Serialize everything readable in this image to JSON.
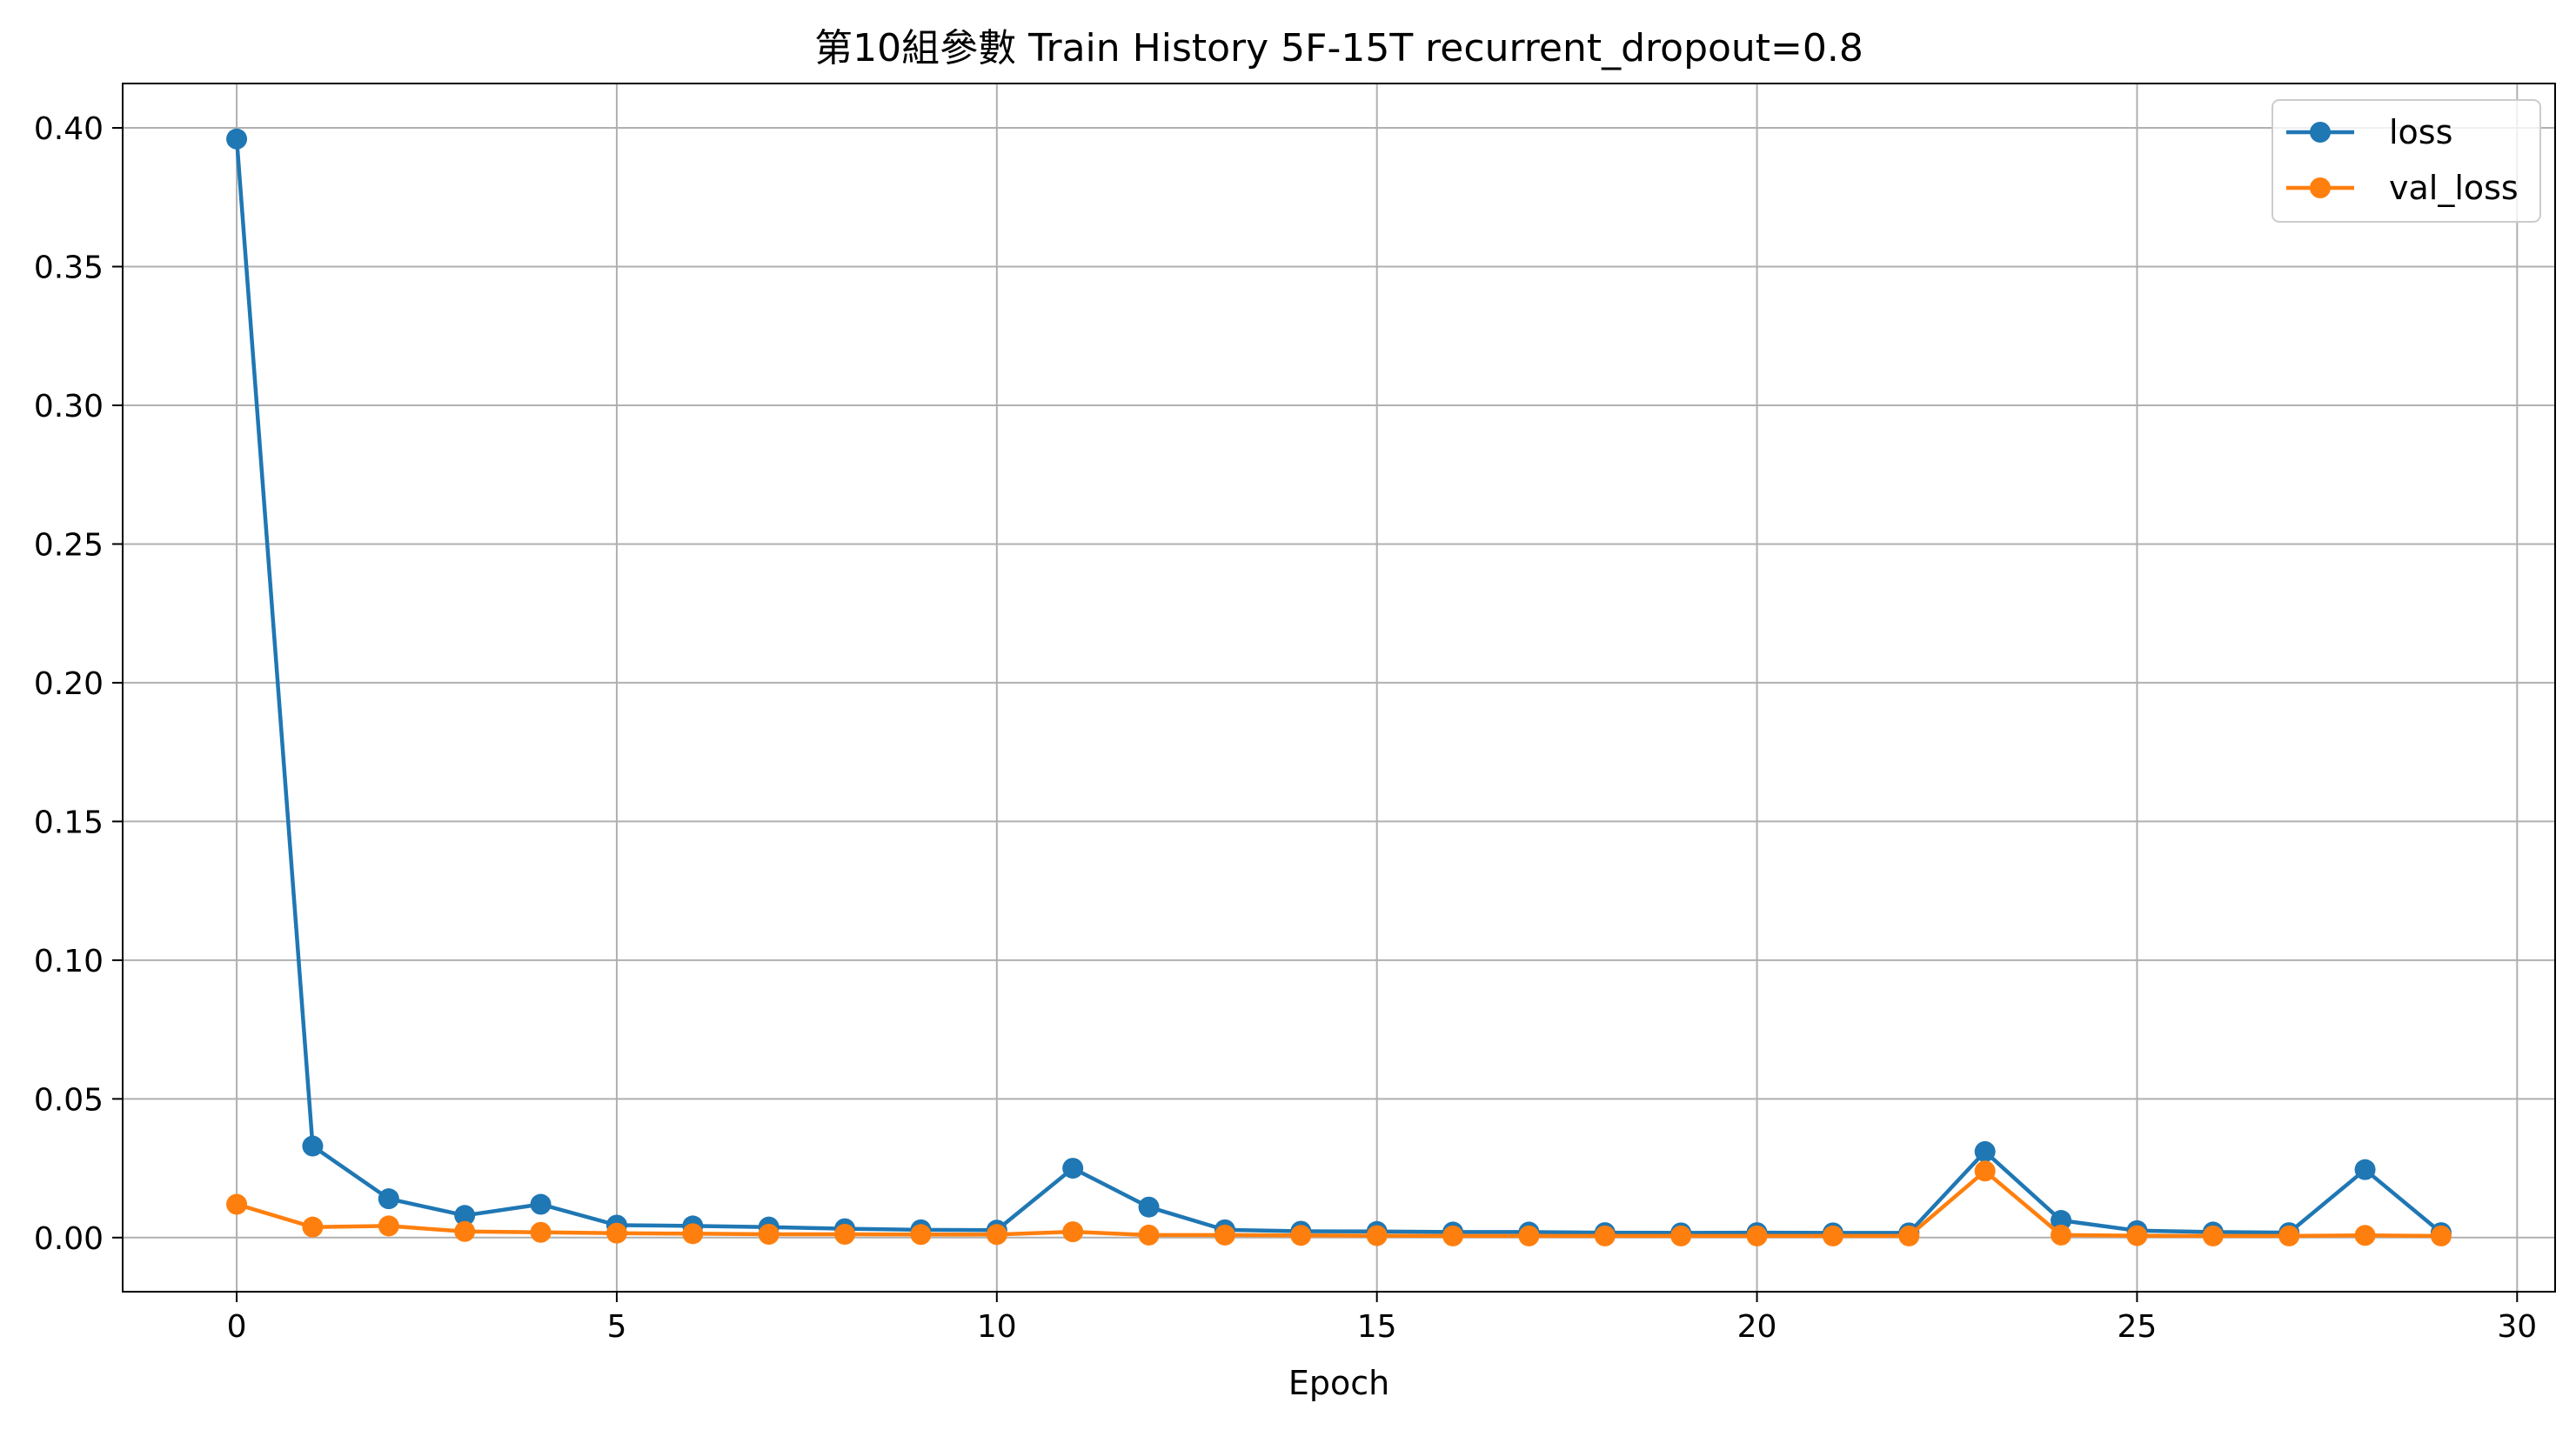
{
  "chart_data": {
    "type": "line",
    "title": "第10組參數 Train History 5F-15T recurrent_dropout=0.8",
    "xlabel": "Epoch",
    "ylabel": "",
    "xlim": [
      -1.5,
      30.5
    ],
    "ylim": [
      -0.0195,
      0.416
    ],
    "x_ticks": [
      0,
      5,
      10,
      15,
      20,
      25,
      30
    ],
    "x_tick_labels": [
      "0",
      "5",
      "10",
      "15",
      "20",
      "25",
      "30"
    ],
    "y_ticks": [
      0.0,
      0.05,
      0.1,
      0.15,
      0.2,
      0.25,
      0.3,
      0.35,
      0.4
    ],
    "y_tick_labels": [
      "0.00",
      "0.05",
      "0.10",
      "0.15",
      "0.20",
      "0.25",
      "0.30",
      "0.35",
      "0.40"
    ],
    "grid": true,
    "legend_position": "top-right",
    "x": [
      0,
      1,
      2,
      3,
      4,
      5,
      6,
      7,
      8,
      9,
      10,
      11,
      12,
      13,
      14,
      15,
      16,
      17,
      18,
      19,
      20,
      21,
      22,
      23,
      24,
      25,
      26,
      27,
      28,
      29
    ],
    "series": [
      {
        "name": "loss",
        "color": "#1f77b4",
        "marker": "circle",
        "values": [
          0.396,
          0.033,
          0.014,
          0.008,
          0.012,
          0.0045,
          0.0042,
          0.0038,
          0.0032,
          0.0028,
          0.0027,
          0.025,
          0.011,
          0.0028,
          0.0023,
          0.0022,
          0.002,
          0.002,
          0.0018,
          0.0017,
          0.0018,
          0.0017,
          0.0017,
          0.031,
          0.0062,
          0.0025,
          0.002,
          0.0018,
          0.0245,
          0.0018
        ]
      },
      {
        "name": "val_loss",
        "color": "#ff7f0e",
        "marker": "circle",
        "values": [
          0.012,
          0.0038,
          0.0042,
          0.0022,
          0.0019,
          0.0016,
          0.0014,
          0.0012,
          0.0012,
          0.0011,
          0.0011,
          0.0021,
          0.0009,
          0.0009,
          0.0008,
          0.0007,
          0.0006,
          0.0006,
          0.0006,
          0.0006,
          0.0006,
          0.0006,
          0.0006,
          0.024,
          0.0009,
          0.0007,
          0.0006,
          0.0006,
          0.0008,
          0.0006
        ]
      }
    ]
  }
}
